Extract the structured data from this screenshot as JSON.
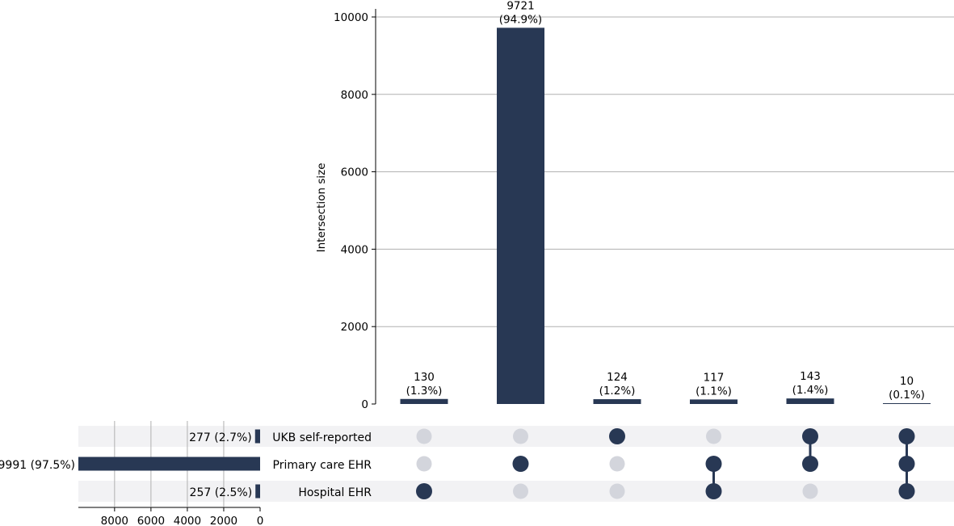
{
  "chart_data": {
    "type": "upset",
    "ylabel": "Intersection size",
    "ylim": [
      0,
      10000
    ],
    "yticks": [
      "0",
      "2000",
      "4000",
      "6000",
      "8000",
      "10000"
    ],
    "bar_color": "#283854",
    "inactive_dot_color": "#d3d5dc",
    "grid": true,
    "sets": [
      {
        "name": "UKB self-reported",
        "size": 277,
        "label": "277 (2.7%)"
      },
      {
        "name": "Primary care EHR",
        "size": 9991,
        "label": "9991 (97.5%)"
      },
      {
        "name": "Hospital EHR",
        "size": 257,
        "label": "257 (2.5%)"
      }
    ],
    "set_size_ticks": [
      "8000",
      "6000",
      "4000",
      "2000",
      "0"
    ],
    "set_size_xlim": [
      10000,
      0
    ],
    "intersections": [
      {
        "value": 130,
        "label_count": "130",
        "label_pct": "(1.3%)",
        "members": [
          false,
          false,
          true
        ]
      },
      {
        "value": 9721,
        "label_count": "9721",
        "label_pct": "(94.9%)",
        "members": [
          false,
          true,
          false
        ]
      },
      {
        "value": 124,
        "label_count": "124",
        "label_pct": "(1.2%)",
        "members": [
          true,
          false,
          false
        ]
      },
      {
        "value": 117,
        "label_count": "117",
        "label_pct": "(1.1%)",
        "members": [
          false,
          true,
          true
        ]
      },
      {
        "value": 143,
        "label_count": "143",
        "label_pct": "(1.4%)",
        "members": [
          true,
          true,
          false
        ]
      },
      {
        "value": 10,
        "label_count": "10",
        "label_pct": "(0.1%)",
        "members": [
          true,
          true,
          true
        ]
      }
    ]
  }
}
